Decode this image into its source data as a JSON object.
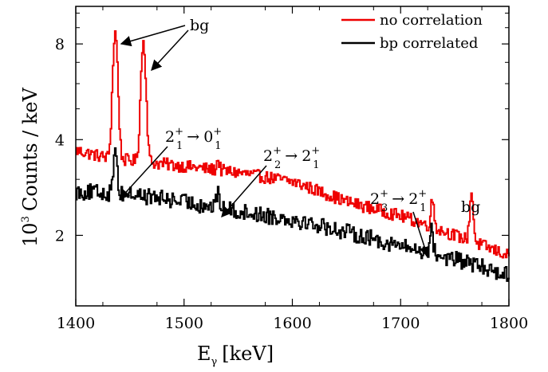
{
  "chart_data": {
    "type": "line",
    "xlabel_main": "E",
    "xlabel_sub": "γ",
    "xlabel_unit": "[keV]",
    "ylabel_base": "10",
    "ylabel_exp": "3",
    "ylabel_rest": "Counts / keV",
    "xlim": [
      1400,
      1800
    ],
    "ylim_log": [
      1.2,
      10.5
    ],
    "y_scale": "log",
    "x_ticks": [
      1400,
      1500,
      1600,
      1700,
      1800
    ],
    "y_ticks": [
      2,
      4,
      8
    ],
    "legend": {
      "placement": "top-right",
      "entries": [
        {
          "label": "no correlation",
          "color": "#ee0000"
        },
        {
          "label": "bp correlated",
          "color": "#000000"
        }
      ]
    },
    "series": [
      {
        "name": "no correlation",
        "color": "#ee0000",
        "base": [
          [
            1400,
            3.7
          ],
          [
            1430,
            3.5
          ],
          [
            1500,
            3.3
          ],
          [
            1550,
            3.15
          ],
          [
            1600,
            2.95
          ],
          [
            1650,
            2.55
          ],
          [
            1700,
            2.3
          ],
          [
            1750,
            2.0
          ],
          [
            1800,
            1.72
          ]
        ],
        "peaks": [
          {
            "x": 1436,
            "amp": 5.2,
            "w": 2.2
          },
          {
            "x": 1462,
            "amp": 4.7,
            "w": 2.2
          },
          {
            "x": 1531,
            "amp": 0.25,
            "w": 1.2
          },
          {
            "x": 1729,
            "amp": 0.45,
            "w": 1.5
          },
          {
            "x": 1765,
            "amp": 0.8,
            "w": 1.6
          }
        ],
        "noise": 0.045
      },
      {
        "name": "bp correlated",
        "color": "#000000",
        "base": [
          [
            1400,
            2.75
          ],
          [
            1450,
            2.7
          ],
          [
            1500,
            2.55
          ],
          [
            1550,
            2.38
          ],
          [
            1600,
            2.25
          ],
          [
            1650,
            2.05
          ],
          [
            1700,
            1.85
          ],
          [
            1750,
            1.68
          ],
          [
            1800,
            1.5
          ]
        ],
        "peaks": [
          {
            "x": 1436,
            "amp": 1.2,
            "w": 1.5
          },
          {
            "x": 1531,
            "amp": 0.35,
            "w": 1.2
          },
          {
            "x": 1728,
            "amp": 0.35,
            "w": 1.4
          }
        ],
        "noise": 0.06
      }
    ],
    "annotations": {
      "bg_top": {
        "text": "bg"
      },
      "trans1": {
        "base": "2",
        "sup1": "+",
        "sub1": "1",
        "arrow": "→",
        "base2": "0",
        "sup2": "+",
        "sub2": "1"
      },
      "trans2": {
        "base": "2",
        "sup1": "+",
        "sub1": "2",
        "arrow": "→",
        "base2": "2",
        "sup2": "+",
        "sub2": "1"
      },
      "trans3": {
        "base": "2",
        "sup1": "+",
        "sub1": "3",
        "arrow": "→",
        "base2": "2",
        "sup2": "+",
        "sub2": "1"
      },
      "bg_right": {
        "text": "bg"
      }
    }
  }
}
